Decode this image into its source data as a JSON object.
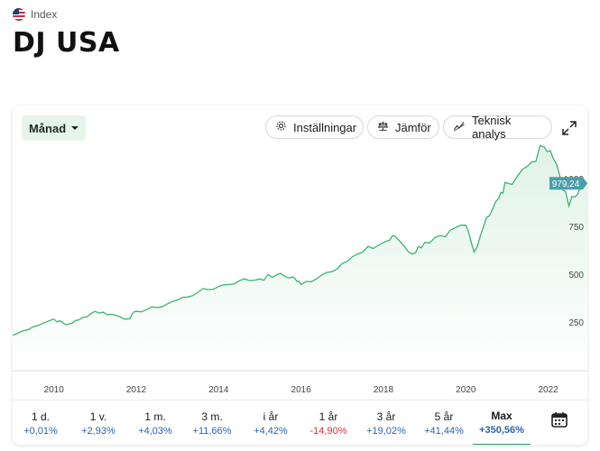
{
  "header": {
    "eyebrow": "Index",
    "title": "DJ USA",
    "flag_icon": "us-flag-icon"
  },
  "toolbar": {
    "period_label": "Månad",
    "settings_label": "Inställningar",
    "compare_label": "Jämför",
    "technical_label": "Teknisk analys",
    "expand_icon": "expand-icon"
  },
  "chart_data": {
    "type": "area",
    "line_color": "#3cb371",
    "x_ticks": [
      "2010",
      "2012",
      "2014",
      "2016",
      "2018",
      "2020",
      "2022"
    ],
    "y_ticks": [
      "250",
      "500",
      "750",
      "1000"
    ],
    "ylim": [
      0,
      1150
    ],
    "current_value_label": "979,24",
    "current_value": 979.24,
    "x": [
      2009.0,
      2009.5,
      2010.0,
      2010.3,
      2010.6,
      2011.0,
      2011.4,
      2011.8,
      2012.0,
      2012.5,
      2013.0,
      2013.5,
      2014.0,
      2014.5,
      2015.0,
      2015.4,
      2015.8,
      2016.0,
      2016.5,
      2017.0,
      2017.5,
      2018.0,
      2018.3,
      2018.7,
      2019.0,
      2019.5,
      2020.0,
      2020.2,
      2020.5,
      2020.8,
      2021.0,
      2021.5,
      2021.9,
      2022.2,
      2022.5,
      2022.8
    ],
    "y": [
      185,
      230,
      270,
      240,
      265,
      310,
      295,
      270,
      310,
      330,
      370,
      410,
      440,
      470,
      480,
      500,
      490,
      450,
      500,
      560,
      620,
      670,
      700,
      610,
      670,
      700,
      760,
      620,
      800,
      900,
      980,
      1070,
      1170,
      1080,
      860,
      980
    ]
  },
  "periods": [
    {
      "label": "1 d.",
      "value": "+0,01%",
      "sign": "pos"
    },
    {
      "label": "1 v.",
      "value": "+2,93%",
      "sign": "pos"
    },
    {
      "label": "1 m.",
      "value": "+4,03%",
      "sign": "pos"
    },
    {
      "label": "3 m.",
      "value": "+11,66%",
      "sign": "pos"
    },
    {
      "label": "i år",
      "value": "+4,42%",
      "sign": "pos"
    },
    {
      "label": "1 år",
      "value": "-14,90%",
      "sign": "neg"
    },
    {
      "label": "3 år",
      "value": "+19,02%",
      "sign": "pos"
    },
    {
      "label": "5 år",
      "value": "+41,44%",
      "sign": "pos"
    },
    {
      "label": "Max",
      "value": "+350,56%",
      "sign": "pos",
      "active": true
    }
  ],
  "calendar_icon": "calendar-icon"
}
